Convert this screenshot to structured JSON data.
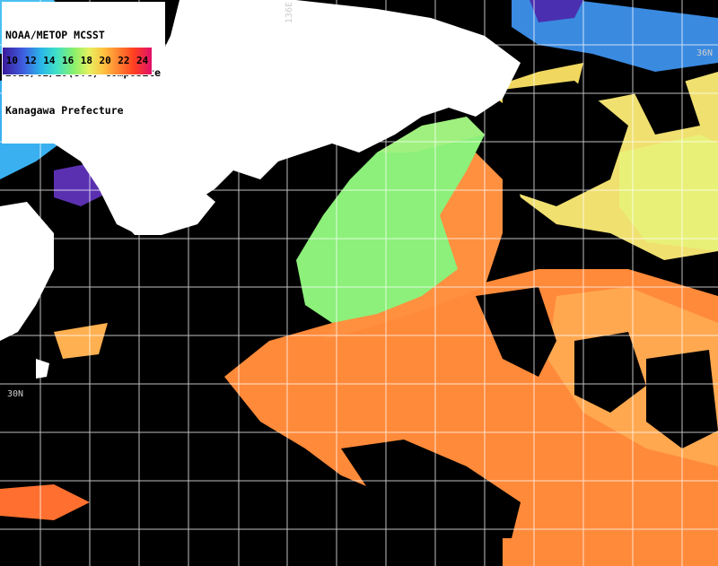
{
  "header": {
    "line1": "NOAA/METOP MCSST",
    "line2": "2018/02/10(UTC) Composite",
    "line3": "Kanagawa Prefecture"
  },
  "legend": {
    "labels": [
      "10",
      "12",
      "14",
      "16",
      "18",
      "20",
      "22",
      "24"
    ],
    "colors": [
      "#3a1a9a",
      "#3e5fe0",
      "#2ab7e8",
      "#3fe0c8",
      "#8af06a",
      "#e6f060",
      "#ffc040",
      "#ff8030",
      "#ff4020",
      "#e0106a"
    ]
  },
  "grid_labels": {
    "lat_36": "36N",
    "lat_30": "30N",
    "lon_136": "136E"
  },
  "colors": {
    "land": "#ffffff",
    "cloud": "#000000",
    "grid": "#ffffff",
    "warm_sst": "#ff8a3a",
    "mid_sst": "#ffb050",
    "cool_sst": "#8cf07a",
    "cold_sst": "#3ab0f0",
    "very_cold_sst": "#5a30b0"
  }
}
